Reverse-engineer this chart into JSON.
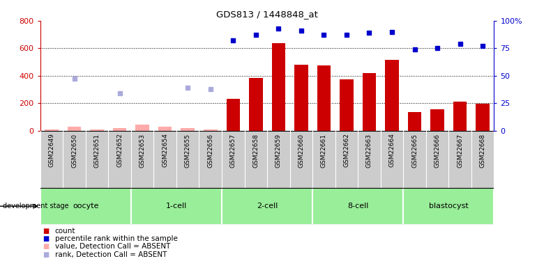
{
  "title": "GDS813 / 1448848_at",
  "samples": [
    "GSM22649",
    "GSM22650",
    "GSM22651",
    "GSM22652",
    "GSM22653",
    "GSM22654",
    "GSM22655",
    "GSM22656",
    "GSM22657",
    "GSM22658",
    "GSM22659",
    "GSM22660",
    "GSM22661",
    "GSM22662",
    "GSM22663",
    "GSM22664",
    "GSM22665",
    "GSM22666",
    "GSM22667",
    "GSM22668"
  ],
  "count_values": [
    null,
    null,
    null,
    null,
    null,
    null,
    null,
    null,
    230,
    385,
    640,
    480,
    475,
    375,
    420,
    515,
    135,
    155,
    210,
    195
  ],
  "count_absent": [
    10,
    30,
    10,
    20,
    45,
    30,
    20,
    10,
    null,
    null,
    null,
    null,
    null,
    null,
    null,
    null,
    null,
    null,
    null,
    null
  ],
  "percentile_rank": [
    null,
    null,
    null,
    null,
    null,
    null,
    null,
    null,
    82,
    87,
    93,
    91,
    87,
    87,
    89,
    90,
    74,
    75,
    79,
    77
  ],
  "value_absent_scatter": [
    10,
    30,
    10,
    20,
    45,
    30,
    20,
    10,
    null,
    null,
    null,
    null,
    null,
    null,
    null,
    null,
    null,
    null,
    null,
    null
  ],
  "rank_absent_scatter": [
    null,
    47,
    null,
    34,
    null,
    null,
    39,
    38,
    null,
    null,
    null,
    null,
    null,
    null,
    null,
    null,
    null,
    null,
    null,
    null
  ],
  "stages": [
    {
      "label": "oocyte",
      "start": 0,
      "end": 3
    },
    {
      "label": "1-cell",
      "start": 4,
      "end": 7
    },
    {
      "label": "2-cell",
      "start": 8,
      "end": 11
    },
    {
      "label": "8-cell",
      "start": 12,
      "end": 15
    },
    {
      "label": "blastocyst",
      "start": 16,
      "end": 19
    }
  ],
  "ylim_left": [
    0,
    800
  ],
  "ylim_right": [
    0,
    100
  ],
  "yticks_left": [
    0,
    200,
    400,
    600,
    800
  ],
  "yticks_right": [
    0,
    25,
    50,
    75,
    100
  ],
  "bar_color": "#cc0000",
  "bar_absent_color": "#ffaaaa",
  "rank_color": "#0000cc",
  "rank_absent_color": "#aaaadd",
  "sample_box_color": "#cccccc",
  "sample_div_color": "#888888",
  "stage_green_light": "#ccffcc",
  "stage_green_dark": "#55dd55"
}
